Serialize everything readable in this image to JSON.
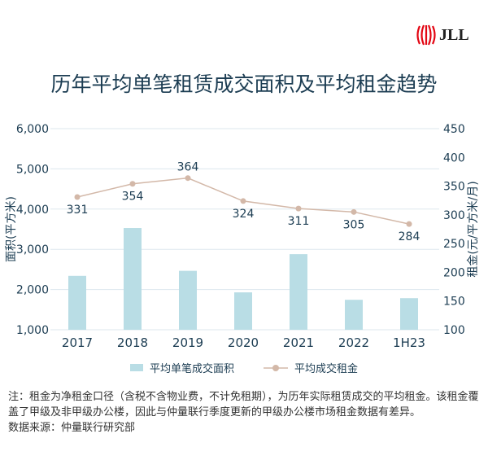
{
  "brand": {
    "name": "JLL",
    "accent": "#e30613"
  },
  "title": "历年平均单笔租赁成交面积及平均租金趋势",
  "chart_data": {
    "type": "bar+line",
    "categories": [
      "2017",
      "2018",
      "2019",
      "2020",
      "2021",
      "2022",
      "1H23"
    ],
    "series": [
      {
        "name": "平均单笔成交面积",
        "type": "bar",
        "axis": "left",
        "color": "#b9dde5",
        "values": [
          2340,
          3530,
          2465,
          1930,
          2880,
          1745,
          1785
        ]
      },
      {
        "name": "平均成交租金",
        "type": "line",
        "axis": "right",
        "color": "#d3b8a8",
        "values": [
          331,
          354,
          364,
          324,
          311,
          305,
          284
        ],
        "labels": [
          "331",
          "354",
          "364",
          "324",
          "311",
          "305",
          "284"
        ]
      }
    ],
    "ylabel_left": "面积(平方米)",
    "ylabel_right": "租金(元/平方米/月)",
    "ylim_left": [
      1000,
      6000
    ],
    "yticks_left": [
      "1,000",
      "2,000",
      "3,000",
      "4,000",
      "5,000",
      "6,000"
    ],
    "ylim_right": [
      100,
      450
    ],
    "yticks_right": [
      "100",
      "150",
      "200",
      "250",
      "300",
      "350",
      "400",
      "450"
    ],
    "grid": true,
    "legend_placement": "bottom"
  },
  "notes": [
    "注：租金为净租金口径（含税不含物业费，不计免租期），为历年实际租赁成交的平均租金。该租金覆盖了甲级及非甲级办公楼，因此与仲量联行季度更新的甲级办公楼市场租金数据有差异。",
    "数据来源：仲量联行研究部"
  ]
}
